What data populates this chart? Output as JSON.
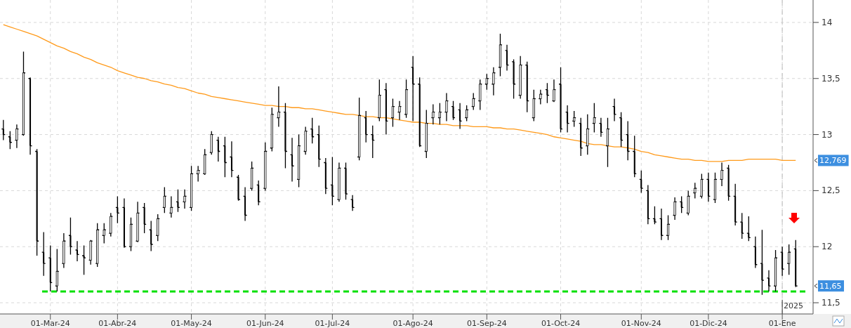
{
  "chart_data": {
    "type": "candlestick",
    "categories": [
      null,
      null,
      null,
      null,
      null,
      null,
      null,
      "01-Mar-24",
      null,
      null,
      null,
      null,
      null,
      null,
      null,
      null,
      null,
      "01-Abr-24",
      null,
      null,
      null,
      null,
      null,
      null,
      null,
      null,
      null,
      null,
      "01-May-24",
      null,
      null,
      null,
      null,
      null,
      null,
      null,
      null,
      null,
      null,
      "01-Jun-24",
      null,
      null,
      null,
      null,
      null,
      null,
      null,
      null,
      null,
      "01-Jul-24",
      null,
      null,
      null,
      null,
      null,
      null,
      null,
      null,
      null,
      null,
      null,
      "01-Ago-24",
      null,
      null,
      null,
      null,
      null,
      null,
      null,
      null,
      null,
      null,
      "01-Sep-24",
      null,
      null,
      null,
      null,
      null,
      null,
      null,
      null,
      null,
      null,
      "01-Oct-24",
      null,
      null,
      null,
      null,
      null,
      null,
      null,
      null,
      null,
      null,
      null,
      "01-Nov-24",
      null,
      null,
      null,
      null,
      null,
      null,
      null,
      null,
      null,
      "01-Dic-24",
      null,
      null,
      null,
      null,
      null,
      null,
      null,
      null,
      null,
      null,
      "01-Ene",
      null,
      null
    ],
    "ohlc": [
      [
        13.05,
        13.13,
        12.95,
        13.0
      ],
      [
        12.98,
        13.03,
        12.87,
        12.93
      ],
      [
        12.95,
        13.09,
        12.88,
        13.05
      ],
      [
        13.0,
        13.74,
        12.99,
        13.55
      ],
      [
        13.5,
        13.51,
        12.82,
        12.9
      ],
      [
        12.85,
        12.87,
        11.92,
        12.05
      ],
      [
        11.95,
        12.13,
        11.74,
        11.85
      ],
      [
        11.9,
        12.01,
        11.6,
        11.68
      ],
      [
        11.65,
        11.98,
        11.6,
        11.78
      ],
      [
        11.85,
        12.12,
        11.81,
        12.05
      ],
      [
        12.1,
        12.26,
        11.93,
        12.0
      ],
      [
        11.97,
        12.05,
        11.87,
        11.93
      ],
      [
        11.92,
        12.01,
        11.75,
        11.9
      ],
      [
        11.88,
        12.06,
        11.84,
        12.05
      ],
      [
        11.85,
        12.21,
        11.82,
        12.15
      ],
      [
        12.1,
        12.21,
        12.03,
        12.15
      ],
      [
        12.12,
        12.3,
        12.09,
        12.27
      ],
      [
        12.35,
        12.45,
        12.21,
        12.3
      ],
      [
        12.35,
        12.43,
        11.99,
        12.0
      ],
      [
        12.0,
        12.26,
        11.96,
        12.2
      ],
      [
        12.05,
        12.4,
        12.04,
        12.3
      ],
      [
        12.35,
        12.39,
        12.12,
        12.2
      ],
      [
        12.15,
        12.23,
        11.96,
        12.02
      ],
      [
        12.1,
        12.29,
        12.05,
        12.25
      ],
      [
        12.35,
        12.53,
        12.3,
        12.45
      ],
      [
        12.3,
        12.45,
        12.26,
        12.35
      ],
      [
        12.4,
        12.51,
        12.31,
        12.35
      ],
      [
        12.4,
        12.51,
        12.34,
        12.45
      ],
      [
        12.35,
        12.72,
        12.32,
        12.65
      ],
      [
        12.65,
        12.72,
        12.58,
        12.68
      ],
      [
        12.65,
        12.87,
        12.64,
        12.82
      ],
      [
        12.84,
        13.03,
        12.82,
        13.0
      ],
      [
        12.95,
        12.98,
        12.76,
        12.85
      ],
      [
        12.9,
        12.98,
        12.62,
        12.75
      ],
      [
        12.8,
        12.94,
        12.62,
        12.68
      ],
      [
        12.62,
        12.64,
        12.41,
        12.42
      ],
      [
        12.45,
        12.53,
        12.23,
        12.28
      ],
      [
        12.52,
        12.76,
        12.5,
        12.7
      ],
      [
        12.55,
        12.59,
        12.37,
        12.4
      ],
      [
        12.52,
        12.93,
        12.5,
        12.85
      ],
      [
        12.88,
        13.24,
        12.85,
        13.18
      ],
      [
        13.15,
        13.43,
        13.07,
        13.2
      ],
      [
        13.2,
        13.28,
        12.7,
        12.85
      ],
      [
        12.82,
        12.97,
        12.58,
        12.72
      ],
      [
        12.6,
        13.0,
        12.53,
        12.9
      ],
      [
        12.85,
        13.07,
        12.82,
        13.03
      ],
      [
        13.05,
        13.15,
        12.92,
        12.98
      ],
      [
        13.0,
        13.08,
        12.71,
        12.78
      ],
      [
        12.75,
        12.79,
        12.47,
        12.52
      ],
      [
        12.55,
        12.8,
        12.37,
        12.45
      ],
      [
        12.42,
        12.75,
        12.4,
        12.7
      ],
      [
        12.7,
        12.75,
        12.42,
        12.47
      ],
      [
        12.42,
        12.46,
        12.32,
        12.35
      ],
      [
        12.8,
        13.33,
        12.77,
        13.17
      ],
      [
        13.15,
        13.21,
        12.93,
        13.0
      ],
      [
        13.0,
        13.08,
        12.79,
        12.95
      ],
      [
        13.15,
        13.49,
        13.12,
        13.35
      ],
      [
        13.4,
        13.46,
        13.0,
        13.12
      ],
      [
        13.15,
        13.32,
        13.07,
        13.25
      ],
      [
        13.2,
        13.3,
        13.13,
        13.25
      ],
      [
        13.18,
        13.49,
        13.15,
        13.4
      ],
      [
        13.6,
        13.7,
        13.12,
        13.45
      ],
      [
        13.45,
        13.51,
        12.89,
        12.9
      ],
      [
        12.85,
        13.22,
        12.79,
        13.1
      ],
      [
        13.15,
        13.27,
        13.09,
        13.2
      ],
      [
        13.15,
        13.28,
        13.09,
        13.2
      ],
      [
        13.2,
        13.37,
        13.12,
        13.3
      ],
      [
        13.25,
        13.3,
        13.13,
        13.15
      ],
      [
        13.22,
        13.28,
        13.05,
        13.12
      ],
      [
        13.15,
        13.26,
        13.12,
        13.22
      ],
      [
        13.25,
        13.37,
        13.22,
        13.32
      ],
      [
        13.3,
        13.49,
        13.22,
        13.45
      ],
      [
        13.45,
        13.54,
        13.4,
        13.5
      ],
      [
        13.45,
        13.6,
        13.35,
        13.55
      ],
      [
        13.6,
        13.9,
        13.52,
        13.8
      ],
      [
        13.75,
        13.8,
        13.57,
        13.62
      ],
      [
        13.65,
        13.67,
        13.32,
        13.45
      ],
      [
        13.35,
        13.7,
        13.32,
        13.62
      ],
      [
        13.62,
        13.65,
        13.2,
        13.3
      ],
      [
        13.15,
        13.4,
        13.12,
        13.32
      ],
      [
        13.32,
        13.4,
        13.27,
        13.36
      ],
      [
        13.4,
        13.46,
        13.28,
        13.35
      ],
      [
        13.3,
        13.49,
        13.29,
        13.4
      ],
      [
        13.45,
        13.6,
        13.02,
        13.05
      ],
      [
        13.2,
        13.26,
        13.02,
        13.1
      ],
      [
        13.12,
        13.21,
        13.07,
        13.15
      ],
      [
        13.1,
        13.15,
        12.81,
        12.88
      ],
      [
        12.9,
        13.18,
        12.82,
        13.05
      ],
      [
        13.1,
        13.28,
        13.02,
        13.15
      ],
      [
        13.1,
        13.15,
        12.98,
        13.02
      ],
      [
        12.9,
        13.15,
        12.71,
        13.05
      ],
      [
        13.25,
        13.32,
        13.12,
        13.18
      ],
      [
        13.15,
        13.2,
        12.89,
        12.95
      ],
      [
        13.0,
        13.12,
        12.77,
        12.85
      ],
      [
        12.85,
        12.99,
        12.62,
        12.65
      ],
      [
        12.6,
        12.68,
        12.48,
        12.52
      ],
      [
        12.5,
        12.55,
        12.2,
        12.25
      ],
      [
        12.25,
        12.36,
        12.2,
        12.22
      ],
      [
        12.25,
        12.34,
        12.06,
        12.1
      ],
      [
        12.1,
        12.28,
        12.06,
        12.2
      ],
      [
        12.28,
        12.44,
        12.24,
        12.4
      ],
      [
        12.4,
        12.45,
        12.3,
        12.35
      ],
      [
        12.3,
        12.5,
        12.28,
        12.45
      ],
      [
        12.48,
        12.57,
        12.43,
        12.52
      ],
      [
        12.45,
        12.65,
        12.43,
        12.6
      ],
      [
        12.6,
        12.66,
        12.4,
        12.45
      ],
      [
        12.42,
        12.66,
        12.39,
        12.6
      ],
      [
        12.6,
        12.75,
        12.54,
        12.68
      ],
      [
        12.7,
        12.73,
        12.41,
        12.45
      ],
      [
        12.45,
        12.56,
        12.19,
        12.22
      ],
      [
        12.22,
        12.3,
        12.07,
        12.12
      ],
      [
        12.12,
        12.27,
        12.05,
        12.08
      ],
      [
        12.0,
        12.09,
        11.81,
        11.84
      ],
      [
        11.85,
        12.15,
        11.57,
        11.7
      ],
      [
        11.72,
        11.79,
        11.6,
        11.65
      ],
      [
        11.65,
        11.97,
        11.6,
        11.9
      ],
      [
        11.95,
        12.0,
        11.74,
        11.8
      ],
      [
        11.85,
        12.02,
        11.75,
        11.95
      ],
      [
        11.98,
        12.06,
        11.64,
        11.65
      ]
    ],
    "series": [
      {
        "type": "line",
        "color": "#ff9a1a",
        "values": [
          13.98,
          13.96,
          13.94,
          13.92,
          13.9,
          13.88,
          13.85,
          13.82,
          13.79,
          13.77,
          13.74,
          13.72,
          13.69,
          13.67,
          13.64,
          13.62,
          13.6,
          13.57,
          13.55,
          13.53,
          13.51,
          13.5,
          13.48,
          13.47,
          13.45,
          13.44,
          13.42,
          13.41,
          13.39,
          13.37,
          13.36,
          13.34,
          13.33,
          13.32,
          13.31,
          13.3,
          13.29,
          13.28,
          13.27,
          13.26,
          13.26,
          13.25,
          13.25,
          13.24,
          13.24,
          13.23,
          13.23,
          13.22,
          13.21,
          13.2,
          13.19,
          13.18,
          13.18,
          13.17,
          13.16,
          13.16,
          13.15,
          13.15,
          13.14,
          13.13,
          13.12,
          13.11,
          13.11,
          13.1,
          13.1,
          13.09,
          13.09,
          13.08,
          13.08,
          13.08,
          13.07,
          13.07,
          13.07,
          13.06,
          13.06,
          13.05,
          13.05,
          13.04,
          13.03,
          13.02,
          13.01,
          13.0,
          12.98,
          12.97,
          12.96,
          12.95,
          12.94,
          12.92,
          12.91,
          12.91,
          12.9,
          12.89,
          12.89,
          12.88,
          12.87,
          12.85,
          12.84,
          12.82,
          12.81,
          12.8,
          12.79,
          12.78,
          12.78,
          12.77,
          12.77,
          12.76,
          12.76,
          12.76,
          12.77,
          12.77,
          12.77,
          12.78,
          12.78,
          12.78,
          12.78,
          12.78,
          12.77,
          12.77,
          12.769
        ]
      }
    ],
    "ylim": [
      11.4,
      14.2
    ],
    "yticks": [
      {
        "value": 11.5,
        "label": "11,5"
      },
      12,
      {
        "value": 12.5,
        "label": "12,5"
      },
      13,
      {
        "value": 13.5,
        "label": "13,5"
      },
      14
    ],
    "grid": true,
    "ref_lines": [
      {
        "axis": "y",
        "value": 11.6,
        "label": null,
        "color": "#00e000",
        "line_style": "dashed"
      },
      {
        "axis": "x",
        "value": "01-Ene",
        "label": "2025",
        "color": "#c8c8c8",
        "line_style": "dashed"
      }
    ],
    "annotations": [
      "12,769",
      "11,65"
    ]
  }
}
